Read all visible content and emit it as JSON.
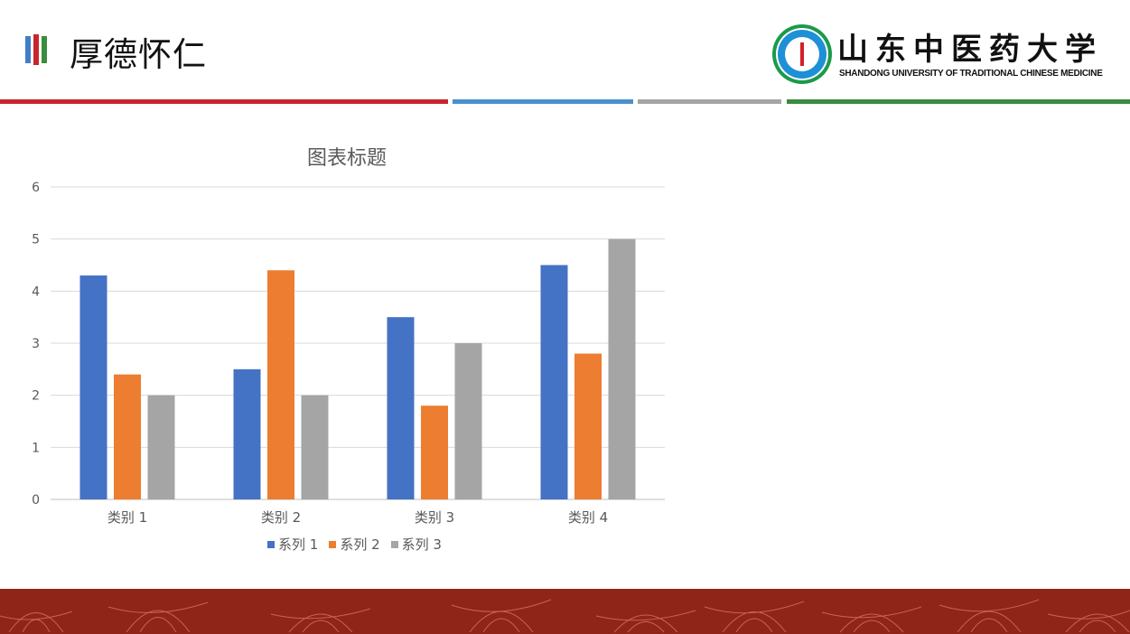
{
  "header": {
    "title": "厚德怀仁",
    "logo_cn": "山东中医药大学",
    "logo_en": "SHANDONG UNIVERSITY OF TRADITIONAL CHINESE MEDICINE"
  },
  "colors": {
    "series1": "#4472c4",
    "series2": "#ed7d31",
    "series3": "#a5a5a5",
    "footer": "#8f2418"
  },
  "chart_data": {
    "type": "bar",
    "title": "图表标题",
    "categories": [
      "类别 1",
      "类别 2",
      "类别 3",
      "类别 4"
    ],
    "series": [
      {
        "name": "系列 1",
        "values": [
          4.3,
          2.5,
          3.5,
          4.5
        ]
      },
      {
        "name": "系列 2",
        "values": [
          2.4,
          4.4,
          1.8,
          2.8
        ]
      },
      {
        "name": "系列 3",
        "values": [
          2,
          2,
          3,
          5
        ]
      }
    ],
    "ylim": [
      0,
      6
    ],
    "yticks": [
      0,
      1,
      2,
      3,
      4,
      5,
      6
    ],
    "grid": true,
    "legend_position": "bottom"
  }
}
